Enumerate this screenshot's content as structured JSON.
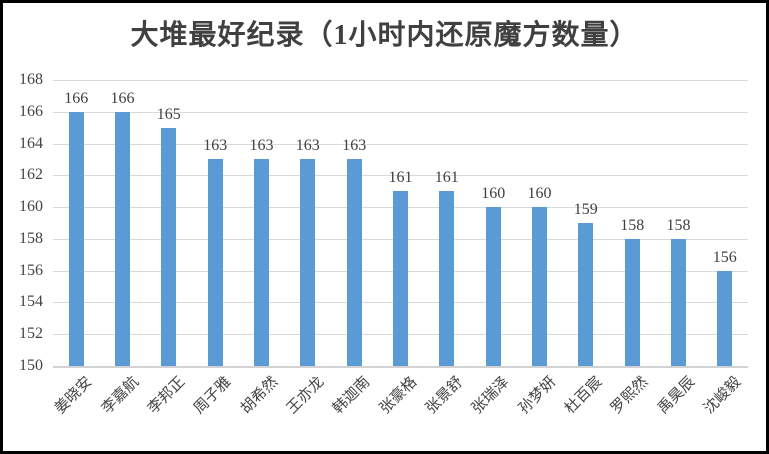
{
  "chart_data": {
    "type": "bar",
    "title": "大堆最好纪录（1小时内还原魔方数量）",
    "categories": [
      "姜晓安",
      "李嘉航",
      "李邦正",
      "周子雅",
      "胡希然",
      "王亦龙",
      "韩迦南",
      "张豪格",
      "张景舒",
      "张瑞泽",
      "孙梦妍",
      "杜百宸",
      "罗熙然",
      "禹昊辰",
      "沈峻毅"
    ],
    "values": [
      166,
      166,
      165,
      163,
      163,
      163,
      163,
      161,
      161,
      160,
      160,
      159,
      158,
      158,
      156
    ],
    "xlabel": "",
    "ylabel": "",
    "ylim": [
      150,
      168
    ],
    "ytick_step": 2,
    "yticks": [
      150,
      152,
      154,
      156,
      158,
      160,
      162,
      164,
      166,
      168
    ],
    "grid": true,
    "legend": false,
    "data_labels_shown": true,
    "x_label_rotation_deg": -45,
    "colors": {
      "bar": "#5B9BD5",
      "gridline": "#D9D9D9",
      "axis_line": "#D2D2D2",
      "title_text": "#404040",
      "data_label_text": "#404040",
      "axis_label_text": "#444444",
      "frame_border": "#000000",
      "background": "#FFFFFF"
    }
  }
}
